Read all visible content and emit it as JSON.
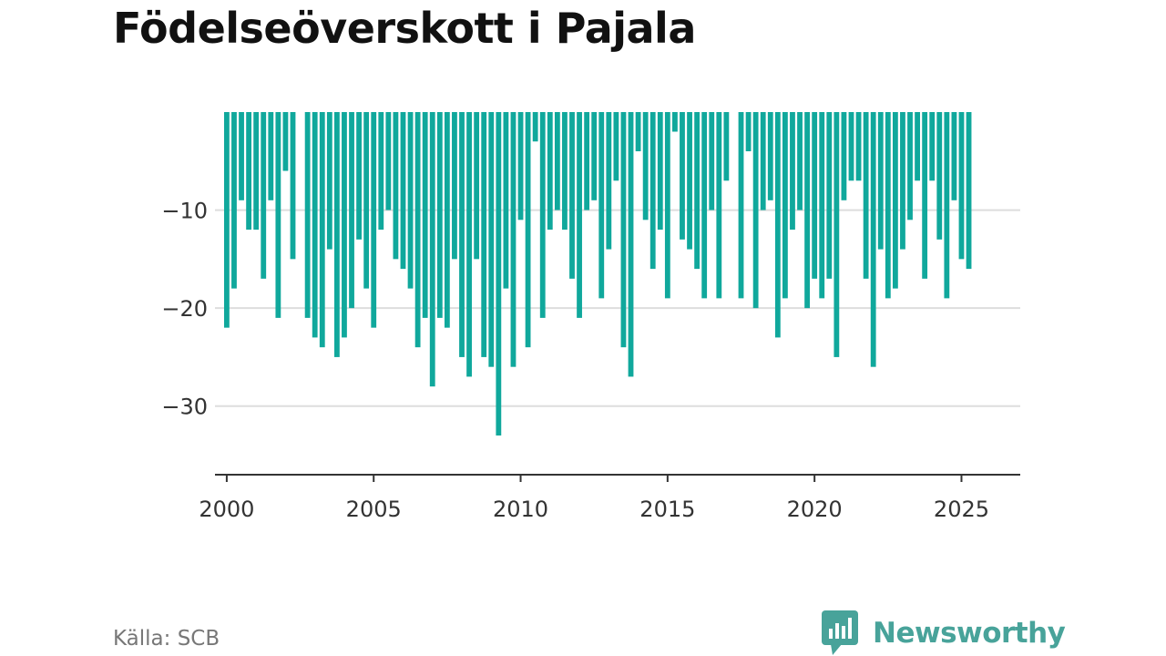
{
  "title": "Födelseöverskott i Pajala",
  "source": "Källa: SCB",
  "brand": {
    "name": "Newsworthy",
    "icon": "newsworthy-logo-icon",
    "color": "#48a39a"
  },
  "colors": {
    "bar": "#10a89c",
    "grid": "#dddddd",
    "axis": "#333333"
  },
  "chart_data": {
    "type": "bar",
    "frequency": "quarterly",
    "x_start": 2000,
    "xlim": [
      1999.6,
      2027.0
    ],
    "ylim": [
      -37,
      0
    ],
    "y_ticks": [
      -10,
      -20,
      -30
    ],
    "y_tick_labels": [
      "−10",
      "−20",
      "−30"
    ],
    "x_ticks": [
      2000,
      2005,
      2010,
      2015,
      2020,
      2025
    ],
    "x_tick_labels": [
      "2000",
      "2005",
      "2010",
      "2015",
      "2020",
      "2025"
    ],
    "grid": true,
    "legend": "none",
    "xlabel": "",
    "ylabel": "",
    "values": [
      -22,
      -18,
      -9,
      -12,
      -12,
      -17,
      -9,
      -21,
      -6,
      -15,
      0,
      -21,
      -23,
      -24,
      -14,
      -25,
      -23,
      -20,
      -13,
      -18,
      -22,
      -12,
      -10,
      -15,
      -16,
      -18,
      -24,
      -21,
      -28,
      -21,
      -22,
      -15,
      -25,
      -27,
      -15,
      -25,
      -26,
      -33,
      -18,
      -26,
      -11,
      -24,
      -3,
      -21,
      -12,
      -10,
      -12,
      -17,
      -21,
      -10,
      -9,
      -19,
      -14,
      -7,
      -24,
      -27,
      -4,
      -11,
      -16,
      -12,
      -19,
      -2,
      -13,
      -14,
      -16,
      -19,
      -10,
      -19,
      -7,
      0,
      -19,
      -4,
      -20,
      -10,
      -9,
      -23,
      -19,
      -12,
      -10,
      -20,
      -17,
      -19,
      -17,
      -25,
      -9,
      -7,
      -7,
      -17,
      -26,
      -14,
      -19,
      -18,
      -14,
      -11,
      -7,
      -17,
      -7,
      -13,
      -19,
      -9,
      -15,
      -16
    ]
  }
}
